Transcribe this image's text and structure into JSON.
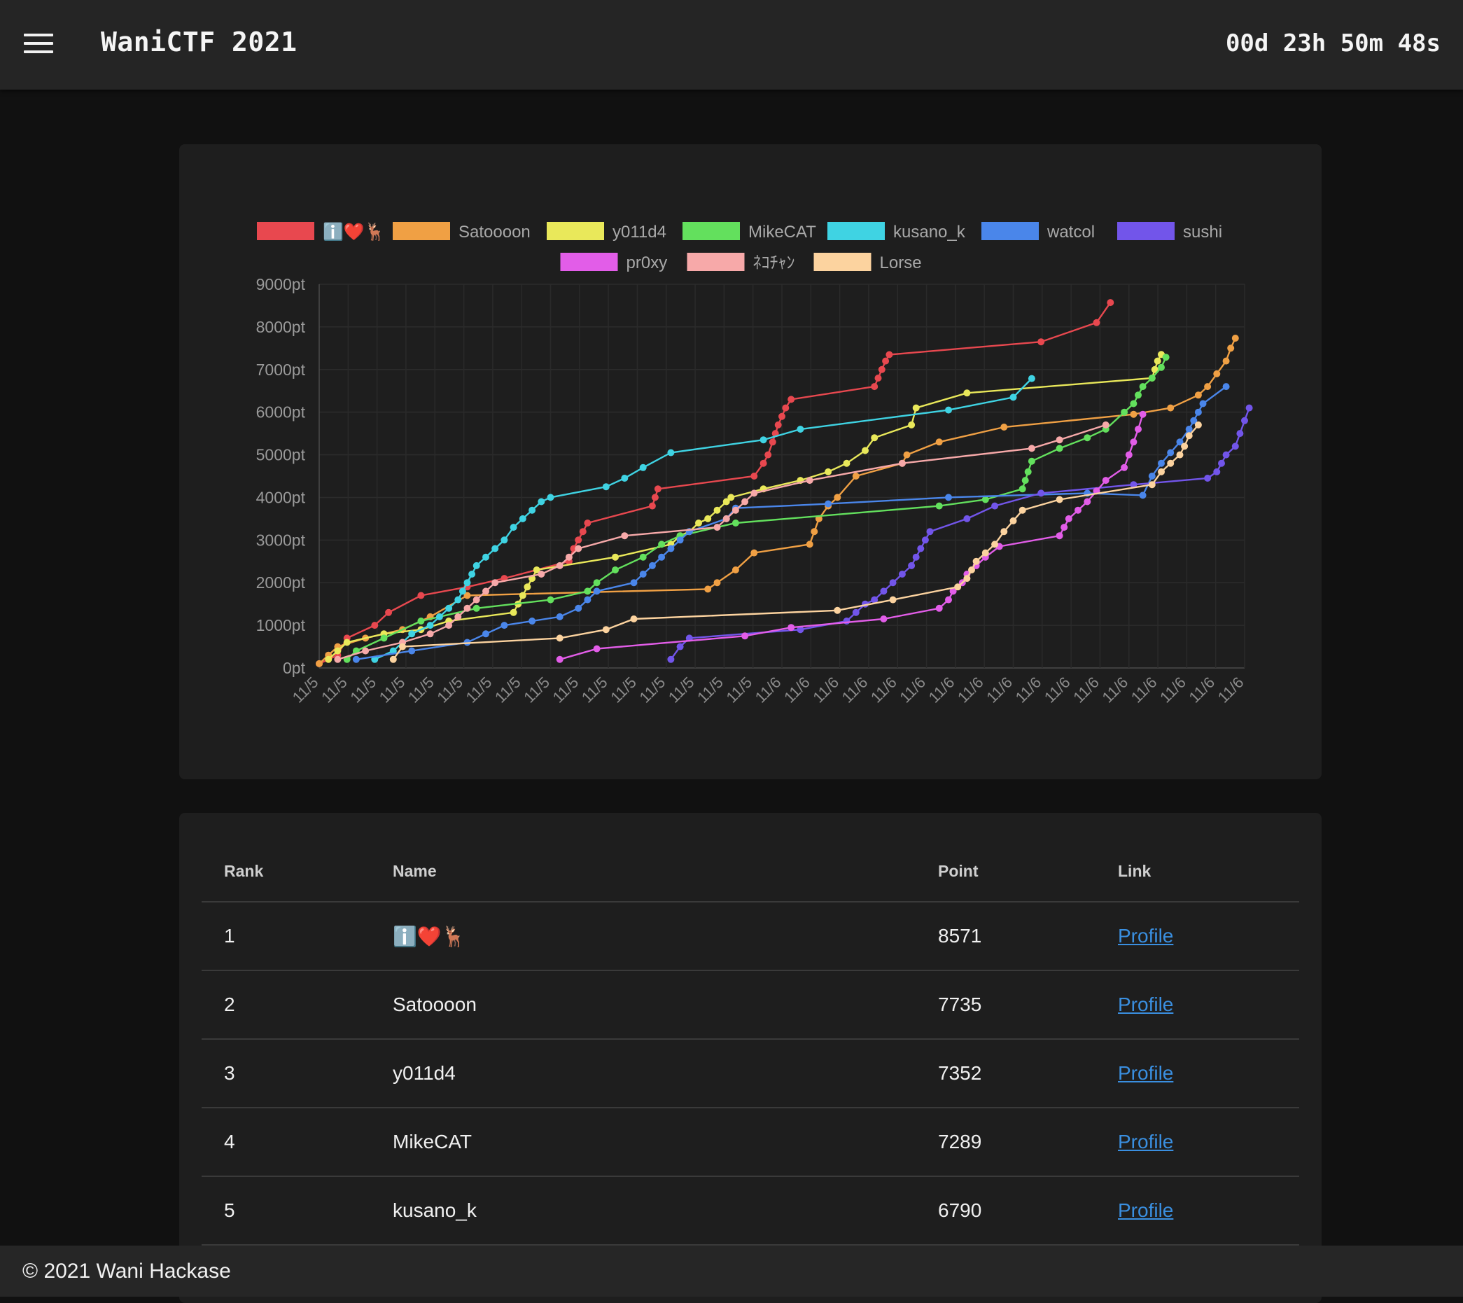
{
  "header": {
    "title": "WaniCTF 2021",
    "countdown": "00d 23h 50m 48s",
    "menu_icon": "hamburger-menu-icon"
  },
  "chart_data": {
    "type": "line",
    "xlabel": "",
    "ylabel": "",
    "ylim": [
      0,
      9000
    ],
    "yticks": [
      "0pt",
      "1000pt",
      "2000pt",
      "3000pt",
      "4000pt",
      "5000pt",
      "6000pt",
      "7000pt",
      "8000pt",
      "9000pt"
    ],
    "x_tick_labels": [
      "11/5",
      "11/5",
      "11/5",
      "11/5",
      "11/5",
      "11/5",
      "11/5",
      "11/5",
      "11/5",
      "11/5",
      "11/5",
      "11/5",
      "11/5",
      "11/5",
      "11/5",
      "11/5",
      "11/6",
      "11/6",
      "11/6",
      "11/6",
      "11/6",
      "11/6",
      "11/6",
      "11/6",
      "11/6",
      "11/6",
      "11/6",
      "11/6",
      "11/6",
      "11/6",
      "11/6",
      "11/6",
      "11/6"
    ],
    "x_range": [
      0,
      100
    ],
    "grid": true,
    "legend_position": "top",
    "series": [
      {
        "name": "ℹ️❤️🦌",
        "color": "#e8484f",
        "points": [
          [
            0,
            100
          ],
          [
            2,
            300
          ],
          [
            3,
            700
          ],
          [
            6,
            1000
          ],
          [
            7.5,
            1300
          ],
          [
            11,
            1700
          ],
          [
            16,
            1900
          ],
          [
            20,
            2100
          ],
          [
            27,
            2500
          ],
          [
            27.5,
            2800
          ],
          [
            28,
            3000
          ],
          [
            28.5,
            3200
          ],
          [
            29,
            3400
          ],
          [
            36,
            3800
          ],
          [
            36.3,
            4000
          ],
          [
            36.6,
            4200
          ],
          [
            47,
            4500
          ],
          [
            48,
            4800
          ],
          [
            48.5,
            5000
          ],
          [
            49,
            5300
          ],
          [
            49.3,
            5500
          ],
          [
            49.6,
            5700
          ],
          [
            50,
            5900
          ],
          [
            50.4,
            6100
          ],
          [
            51,
            6300
          ],
          [
            60,
            6600
          ],
          [
            60.4,
            6800
          ],
          [
            60.8,
            7000
          ],
          [
            61.2,
            7200
          ],
          [
            61.6,
            7350
          ],
          [
            78,
            7650
          ],
          [
            84,
            8100
          ],
          [
            85.5,
            8571
          ]
        ]
      },
      {
        "name": "Satoooon",
        "color": "#f0a044",
        "points": [
          [
            0,
            100
          ],
          [
            1,
            300
          ],
          [
            2,
            500
          ],
          [
            5,
            700
          ],
          [
            9,
            900
          ],
          [
            12,
            1200
          ],
          [
            16,
            1700
          ],
          [
            42,
            1850
          ],
          [
            43,
            2000
          ],
          [
            45,
            2300
          ],
          [
            47,
            2700
          ],
          [
            53,
            2900
          ],
          [
            53.5,
            3200
          ],
          [
            54,
            3500
          ],
          [
            55,
            3800
          ],
          [
            56,
            4000
          ],
          [
            58,
            4500
          ],
          [
            63,
            4800
          ],
          [
            63.5,
            5000
          ],
          [
            67,
            5300
          ],
          [
            74,
            5650
          ],
          [
            88,
            5950
          ],
          [
            92,
            6100
          ],
          [
            95,
            6400
          ],
          [
            96,
            6600
          ],
          [
            97,
            6900
          ],
          [
            98,
            7200
          ],
          [
            98.5,
            7500
          ],
          [
            99,
            7735
          ]
        ]
      },
      {
        "name": "y011d4",
        "color": "#e9e85a",
        "points": [
          [
            1,
            200
          ],
          [
            2,
            400
          ],
          [
            3,
            600
          ],
          [
            7,
            800
          ],
          [
            11,
            900
          ],
          [
            14,
            1100
          ],
          [
            21,
            1300
          ],
          [
            21.5,
            1500
          ],
          [
            22,
            1700
          ],
          [
            22.5,
            1900
          ],
          [
            23,
            2100
          ],
          [
            23.5,
            2300
          ],
          [
            32,
            2600
          ],
          [
            38,
            2900
          ],
          [
            39,
            3100
          ],
          [
            40,
            3200
          ],
          [
            41,
            3400
          ],
          [
            42,
            3500
          ],
          [
            43,
            3700
          ],
          [
            44,
            3900
          ],
          [
            44.5,
            4000
          ],
          [
            48,
            4200
          ],
          [
            52,
            4400
          ],
          [
            55,
            4600
          ],
          [
            57,
            4800
          ],
          [
            59,
            5100
          ],
          [
            60,
            5400
          ],
          [
            64,
            5700
          ],
          [
            64.5,
            6100
          ],
          [
            70,
            6450
          ],
          [
            90,
            6800
          ],
          [
            90.3,
            7000
          ],
          [
            90.6,
            7200
          ],
          [
            91,
            7352
          ]
        ]
      },
      {
        "name": "MikeCAT",
        "color": "#63e05d",
        "points": [
          [
            3,
            200
          ],
          [
            4,
            400
          ],
          [
            7,
            700
          ],
          [
            11,
            1100
          ],
          [
            17,
            1400
          ],
          [
            25,
            1600
          ],
          [
            29,
            1800
          ],
          [
            30,
            2000
          ],
          [
            32,
            2300
          ],
          [
            35,
            2600
          ],
          [
            37,
            2900
          ],
          [
            39,
            3100
          ],
          [
            45,
            3400
          ],
          [
            67,
            3800
          ],
          [
            72,
            3950
          ],
          [
            76,
            4200
          ],
          [
            76.3,
            4400
          ],
          [
            76.6,
            4600
          ],
          [
            77,
            4850
          ],
          [
            80,
            5150
          ],
          [
            83,
            5400
          ],
          [
            85,
            5600
          ],
          [
            87,
            6000
          ],
          [
            88,
            6200
          ],
          [
            88.5,
            6400
          ],
          [
            89,
            6600
          ],
          [
            90,
            6800
          ],
          [
            91,
            7050
          ],
          [
            91.5,
            7289
          ]
        ]
      },
      {
        "name": "kusano_k",
        "color": "#3fd3e3",
        "points": [
          [
            6,
            200
          ],
          [
            8,
            400
          ],
          [
            9,
            600
          ],
          [
            10,
            800
          ],
          [
            12,
            1000
          ],
          [
            13,
            1200
          ],
          [
            14,
            1400
          ],
          [
            15,
            1600
          ],
          [
            15.5,
            1800
          ],
          [
            16,
            2000
          ],
          [
            16.5,
            2200
          ],
          [
            17,
            2400
          ],
          [
            18,
            2600
          ],
          [
            19,
            2800
          ],
          [
            20,
            3000
          ],
          [
            21,
            3300
          ],
          [
            22,
            3500
          ],
          [
            23,
            3700
          ],
          [
            24,
            3900
          ],
          [
            25,
            4000
          ],
          [
            31,
            4250
          ],
          [
            33,
            4450
          ],
          [
            35,
            4700
          ],
          [
            38,
            5050
          ],
          [
            48,
            5350
          ],
          [
            52,
            5600
          ],
          [
            68,
            6050
          ],
          [
            75,
            6350
          ],
          [
            77,
            6790
          ]
        ]
      },
      {
        "name": "watcol",
        "color": "#4a86ea",
        "points": [
          [
            4,
            200
          ],
          [
            10,
            400
          ],
          [
            16,
            600
          ],
          [
            18,
            800
          ],
          [
            20,
            1000
          ],
          [
            23,
            1100
          ],
          [
            26,
            1200
          ],
          [
            28,
            1400
          ],
          [
            29,
            1600
          ],
          [
            30,
            1800
          ],
          [
            34,
            2000
          ],
          [
            35,
            2200
          ],
          [
            36,
            2400
          ],
          [
            37,
            2600
          ],
          [
            38,
            2800
          ],
          [
            39,
            3000
          ],
          [
            40,
            3200
          ],
          [
            44,
            3500
          ],
          [
            45,
            3750
          ],
          [
            55,
            3850
          ],
          [
            68,
            4000
          ],
          [
            83,
            4100
          ],
          [
            89,
            4050
          ],
          [
            90,
            4500
          ],
          [
            91,
            4800
          ],
          [
            92,
            5050
          ],
          [
            93,
            5300
          ],
          [
            94,
            5600
          ],
          [
            94.5,
            5800
          ],
          [
            95,
            6000
          ],
          [
            95.5,
            6200
          ],
          [
            98,
            6600
          ]
        ]
      },
      {
        "name": "sushi",
        "color": "#7255ea",
        "points": [
          [
            38,
            200
          ],
          [
            39,
            500
          ],
          [
            40,
            700
          ],
          [
            52,
            900
          ],
          [
            57,
            1100
          ],
          [
            58,
            1300
          ],
          [
            59,
            1500
          ],
          [
            60,
            1600
          ],
          [
            61,
            1800
          ],
          [
            62,
            2000
          ],
          [
            63,
            2200
          ],
          [
            64,
            2400
          ],
          [
            64.5,
            2600
          ],
          [
            65,
            2800
          ],
          [
            65.5,
            3000
          ],
          [
            66,
            3200
          ],
          [
            70,
            3500
          ],
          [
            73,
            3800
          ],
          [
            78,
            4100
          ],
          [
            88,
            4300
          ],
          [
            96,
            4450
          ],
          [
            97,
            4600
          ],
          [
            97.5,
            4800
          ],
          [
            98,
            5000
          ],
          [
            99,
            5200
          ],
          [
            99.5,
            5500
          ],
          [
            100,
            5800
          ],
          [
            100.5,
            6100
          ]
        ]
      },
      {
        "name": "pr0xy",
        "color": "#e25de8",
        "points": [
          [
            26,
            200
          ],
          [
            30,
            450
          ],
          [
            46,
            750
          ],
          [
            51,
            950
          ],
          [
            61,
            1150
          ],
          [
            67,
            1400
          ],
          [
            68,
            1600
          ],
          [
            68.5,
            1800
          ],
          [
            69.5,
            2000
          ],
          [
            70,
            2200
          ],
          [
            71,
            2400
          ],
          [
            72,
            2600
          ],
          [
            73.5,
            2850
          ],
          [
            80,
            3100
          ],
          [
            80.5,
            3300
          ],
          [
            81,
            3500
          ],
          [
            82,
            3700
          ],
          [
            83,
            3900
          ],
          [
            84,
            4150
          ],
          [
            85,
            4400
          ],
          [
            87,
            4700
          ],
          [
            87.5,
            5000
          ],
          [
            88,
            5300
          ],
          [
            88.5,
            5600
          ],
          [
            89,
            5950
          ]
        ]
      },
      {
        "name": "ﾈｺﾁｬﾝ",
        "color": "#f7a9a9",
        "points": [
          [
            2,
            200
          ],
          [
            5,
            400
          ],
          [
            9,
            600
          ],
          [
            12,
            800
          ],
          [
            14,
            1000
          ],
          [
            15,
            1200
          ],
          [
            16,
            1400
          ],
          [
            17,
            1600
          ],
          [
            18,
            1800
          ],
          [
            19,
            2000
          ],
          [
            24,
            2200
          ],
          [
            26,
            2400
          ],
          [
            27,
            2600
          ],
          [
            28,
            2800
          ],
          [
            33,
            3100
          ],
          [
            43,
            3300
          ],
          [
            44,
            3500
          ],
          [
            45,
            3700
          ],
          [
            46,
            3900
          ],
          [
            47,
            4100
          ],
          [
            53,
            4400
          ],
          [
            63,
            4800
          ],
          [
            77,
            5150
          ],
          [
            80,
            5350
          ],
          [
            85,
            5700
          ]
        ]
      },
      {
        "name": "Lorse",
        "color": "#fcd39f",
        "points": [
          [
            8,
            200
          ],
          [
            9,
            500
          ],
          [
            26,
            700
          ],
          [
            31,
            900
          ],
          [
            34,
            1150
          ],
          [
            56,
            1350
          ],
          [
            62,
            1600
          ],
          [
            69,
            1900
          ],
          [
            70,
            2100
          ],
          [
            70.5,
            2300
          ],
          [
            71,
            2500
          ],
          [
            72,
            2700
          ],
          [
            73,
            2900
          ],
          [
            74,
            3200
          ],
          [
            75,
            3450
          ],
          [
            76,
            3700
          ],
          [
            80,
            3950
          ],
          [
            90,
            4300
          ],
          [
            91,
            4600
          ],
          [
            92,
            4800
          ],
          [
            93,
            5000
          ],
          [
            93.5,
            5200
          ],
          [
            94,
            5450
          ],
          [
            95,
            5700
          ]
        ]
      }
    ]
  },
  "leaderboard": {
    "columns": [
      "Rank",
      "Name",
      "Point",
      "Link"
    ],
    "rows": [
      {
        "rank": "1",
        "name": "ℹ️❤️🦌",
        "point": "8571",
        "link": "Profile"
      },
      {
        "rank": "2",
        "name": "Satoooon",
        "point": "7735",
        "link": "Profile"
      },
      {
        "rank": "3",
        "name": "y011d4",
        "point": "7352",
        "link": "Profile"
      },
      {
        "rank": "4",
        "name": "MikeCAT",
        "point": "7289",
        "link": "Profile"
      },
      {
        "rank": "5",
        "name": "kusano_k",
        "point": "6790",
        "link": "Profile"
      }
    ]
  },
  "footer": {
    "copyright": "© 2021 Wani Hackase"
  }
}
